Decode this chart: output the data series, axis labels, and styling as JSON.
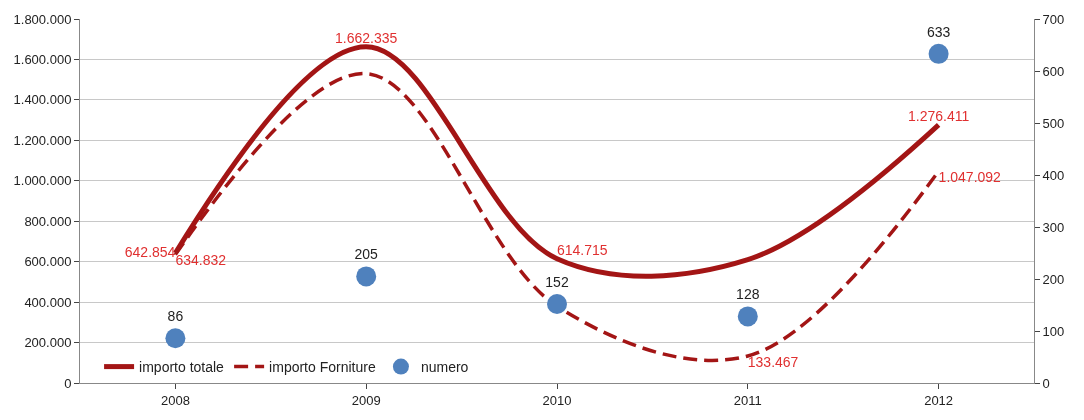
{
  "chart_data": {
    "type": "line",
    "categories": [
      "2008",
      "2009",
      "2010",
      "2011",
      "2012"
    ],
    "series": [
      {
        "name": "importo totale",
        "color": "#a31515",
        "line_style": "solid",
        "values": [
          642854,
          1662335,
          614715,
          610000,
          1276411
        ],
        "value_labels": [
          "642.854",
          "1.662.335",
          "614.715",
          null,
          "1.276.411"
        ]
      },
      {
        "name": "importo Forniture",
        "color": "#a31515",
        "line_style": "dashed",
        "values": [
          634832,
          1530000,
          380000,
          133467,
          1047092
        ],
        "value_labels": [
          "634.832",
          null,
          null,
          "133.467",
          "1.047.092"
        ]
      },
      {
        "name": "numero",
        "color": "#4f81bd",
        "type": "scatter",
        "axis": "y2",
        "marker": "circle",
        "values": [
          86,
          205,
          152,
          128,
          633
        ],
        "data_labels": true
      }
    ],
    "ylim": [
      0,
      1800000
    ],
    "yticks": [
      0,
      {
        "value": 200000,
        "label": "200.000"
      },
      {
        "value": 400000,
        "label": "400.000"
      },
      {
        "value": 600000,
        "label": "600.000"
      },
      {
        "value": 800000,
        "label": "800.000"
      },
      {
        "value": 1000000,
        "label": "1.000.000"
      },
      {
        "value": 1200000,
        "label": "1.200.000"
      },
      {
        "value": 1400000,
        "label": "1.400.000"
      },
      {
        "value": 1600000,
        "label": "1.600.000"
      },
      {
        "value": 1800000,
        "label": "1.800.000"
      }
    ],
    "y2lim": [
      0,
      700
    ],
    "y2ticks": [
      0,
      100,
      200,
      300,
      400,
      500,
      600,
      700
    ],
    "grid": "y",
    "legend": "bottom"
  }
}
